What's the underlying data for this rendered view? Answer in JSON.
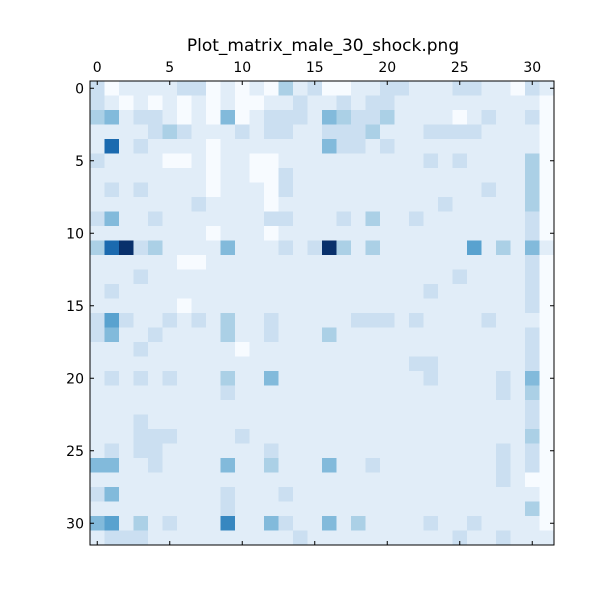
{
  "chart_data": {
    "type": "heatmap",
    "title": "Plot_matrix_male_30_shock.png",
    "xlabel": "",
    "ylabel": "",
    "rows": 32,
    "cols": 32,
    "x_ticks": [
      0,
      5,
      10,
      15,
      20,
      25,
      30
    ],
    "y_ticks": [
      0,
      5,
      10,
      15,
      20,
      25,
      30
    ],
    "x_tick_labels": [
      "0",
      "5",
      "10",
      "15",
      "20",
      "25",
      "30"
    ],
    "y_tick_labels": [
      "0",
      "5",
      "10",
      "15",
      "20",
      "25",
      "30"
    ],
    "x_axis_position": "top",
    "y_axis_direction": "top-to-bottom",
    "colormap": "Blues",
    "color_low": "#f7fbff",
    "color_high": "#08306b",
    "value_range": [
      0,
      1
    ],
    "grid": false,
    "legend": "none",
    "cells": [
      [
        2,
        0,
        1,
        1,
        1,
        1,
        2,
        2,
        0,
        1,
        0,
        1,
        0,
        3,
        1,
        2,
        0,
        0,
        1,
        1,
        2,
        2,
        1,
        1,
        1,
        2,
        2,
        1,
        1,
        0,
        2,
        1
      ],
      [
        2,
        1,
        0,
        1,
        0,
        1,
        0,
        1,
        0,
        1,
        0,
        0,
        1,
        1,
        2,
        1,
        1,
        2,
        1,
        2,
        2,
        1,
        1,
        1,
        1,
        1,
        1,
        1,
        1,
        1,
        1,
        0
      ],
      [
        3,
        4,
        1,
        2,
        2,
        1,
        0,
        1,
        0,
        4,
        0,
        1,
        2,
        2,
        2,
        1,
        4,
        3,
        2,
        2,
        3,
        1,
        1,
        1,
        1,
        0,
        1,
        2,
        1,
        1,
        2,
        0
      ],
      [
        1,
        1,
        1,
        1,
        2,
        3,
        2,
        1,
        1,
        1,
        2,
        1,
        2,
        2,
        1,
        1,
        2,
        2,
        2,
        3,
        1,
        1,
        1,
        2,
        2,
        2,
        2,
        1,
        1,
        1,
        1,
        0
      ],
      [
        1,
        7,
        1,
        2,
        1,
        1,
        1,
        1,
        0,
        1,
        1,
        1,
        1,
        1,
        1,
        1,
        4,
        2,
        2,
        1,
        2,
        1,
        1,
        1,
        1,
        1,
        1,
        1,
        1,
        1,
        1,
        0
      ],
      [
        2,
        1,
        1,
        1,
        1,
        0,
        0,
        1,
        0,
        1,
        1,
        0,
        0,
        1,
        1,
        1,
        1,
        1,
        1,
        1,
        1,
        1,
        1,
        2,
        1,
        2,
        1,
        1,
        1,
        1,
        3,
        0
      ],
      [
        1,
        1,
        1,
        1,
        1,
        1,
        1,
        1,
        0,
        1,
        1,
        0,
        0,
        2,
        1,
        1,
        1,
        1,
        1,
        1,
        1,
        1,
        1,
        1,
        1,
        1,
        1,
        1,
        1,
        1,
        3,
        0
      ],
      [
        1,
        2,
        1,
        2,
        1,
        1,
        1,
        1,
        0,
        1,
        1,
        1,
        0,
        2,
        1,
        1,
        1,
        1,
        1,
        1,
        1,
        1,
        1,
        1,
        1,
        1,
        1,
        2,
        1,
        1,
        3,
        0
      ],
      [
        1,
        1,
        1,
        1,
        1,
        1,
        1,
        2,
        1,
        1,
        1,
        1,
        0,
        1,
        1,
        1,
        1,
        1,
        1,
        1,
        1,
        1,
        1,
        1,
        2,
        1,
        1,
        1,
        1,
        1,
        3,
        0
      ],
      [
        2,
        4,
        1,
        1,
        2,
        1,
        1,
        1,
        1,
        1,
        1,
        1,
        2,
        2,
        1,
        1,
        1,
        2,
        1,
        3,
        1,
        1,
        2,
        1,
        1,
        1,
        1,
        1,
        1,
        1,
        2,
        0
      ],
      [
        1,
        1,
        1,
        1,
        1,
        1,
        1,
        1,
        0,
        1,
        1,
        1,
        0,
        1,
        1,
        1,
        1,
        1,
        1,
        1,
        1,
        1,
        1,
        1,
        1,
        1,
        1,
        1,
        1,
        1,
        2,
        0
      ],
      [
        3,
        7,
        9,
        2,
        3,
        1,
        1,
        1,
        1,
        4,
        1,
        1,
        1,
        2,
        1,
        2,
        9,
        3,
        1,
        3,
        1,
        1,
        1,
        1,
        1,
        1,
        5,
        1,
        3,
        1,
        4,
        1
      ],
      [
        1,
        1,
        1,
        1,
        1,
        1,
        0,
        0,
        1,
        1,
        1,
        1,
        1,
        1,
        1,
        1,
        1,
        1,
        1,
        1,
        1,
        1,
        1,
        1,
        1,
        1,
        1,
        1,
        1,
        1,
        2,
        0
      ],
      [
        1,
        1,
        1,
        2,
        1,
        1,
        1,
        1,
        1,
        1,
        1,
        1,
        1,
        1,
        1,
        1,
        1,
        1,
        1,
        1,
        1,
        1,
        1,
        1,
        1,
        2,
        1,
        1,
        1,
        1,
        2,
        0
      ],
      [
        1,
        2,
        1,
        1,
        1,
        1,
        1,
        1,
        1,
        1,
        1,
        1,
        1,
        1,
        1,
        1,
        1,
        1,
        1,
        1,
        1,
        1,
        1,
        2,
        1,
        1,
        1,
        1,
        1,
        1,
        2,
        0
      ],
      [
        1,
        1,
        1,
        1,
        1,
        1,
        0,
        1,
        1,
        1,
        1,
        1,
        1,
        1,
        1,
        1,
        1,
        1,
        1,
        1,
        1,
        1,
        1,
        1,
        1,
        1,
        1,
        1,
        1,
        1,
        2,
        0
      ],
      [
        2,
        5,
        2,
        1,
        1,
        2,
        1,
        2,
        1,
        3,
        1,
        1,
        2,
        1,
        1,
        1,
        1,
        1,
        2,
        2,
        2,
        1,
        2,
        1,
        1,
        1,
        1,
        2,
        1,
        1,
        1,
        0
      ],
      [
        2,
        4,
        1,
        1,
        2,
        1,
        1,
        1,
        1,
        3,
        1,
        1,
        2,
        1,
        1,
        1,
        3,
        1,
        1,
        1,
        1,
        1,
        1,
        1,
        1,
        1,
        1,
        1,
        1,
        1,
        2,
        0
      ],
      [
        1,
        1,
        1,
        2,
        1,
        1,
        1,
        1,
        1,
        1,
        0,
        1,
        1,
        1,
        1,
        1,
        1,
        1,
        1,
        1,
        1,
        1,
        1,
        1,
        1,
        1,
        1,
        1,
        1,
        1,
        2,
        0
      ],
      [
        1,
        1,
        1,
        1,
        1,
        1,
        1,
        1,
        1,
        1,
        1,
        1,
        1,
        1,
        1,
        1,
        1,
        1,
        1,
        1,
        1,
        1,
        2,
        2,
        1,
        1,
        1,
        1,
        1,
        1,
        2,
        0
      ],
      [
        1,
        2,
        1,
        2,
        1,
        2,
        1,
        1,
        1,
        3,
        1,
        1,
        4,
        1,
        1,
        1,
        1,
        1,
        1,
        1,
        1,
        1,
        1,
        2,
        1,
        1,
        1,
        1,
        2,
        1,
        4,
        0
      ],
      [
        1,
        1,
        1,
        1,
        1,
        1,
        1,
        1,
        1,
        2,
        1,
        1,
        1,
        1,
        1,
        1,
        1,
        1,
        1,
        1,
        1,
        1,
        1,
        1,
        1,
        1,
        1,
        1,
        2,
        1,
        3,
        0
      ],
      [
        1,
        1,
        1,
        1,
        1,
        1,
        1,
        1,
        1,
        1,
        1,
        1,
        1,
        1,
        1,
        1,
        1,
        1,
        1,
        1,
        1,
        1,
        1,
        1,
        1,
        1,
        1,
        1,
        1,
        1,
        2,
        0
      ],
      [
        1,
        1,
        1,
        2,
        1,
        1,
        1,
        1,
        1,
        1,
        1,
        1,
        1,
        1,
        1,
        1,
        1,
        1,
        1,
        1,
        1,
        1,
        1,
        1,
        1,
        1,
        1,
        1,
        1,
        1,
        2,
        0
      ],
      [
        1,
        1,
        1,
        2,
        2,
        2,
        1,
        1,
        1,
        1,
        2,
        1,
        1,
        1,
        1,
        1,
        1,
        1,
        1,
        1,
        1,
        1,
        1,
        1,
        1,
        1,
        1,
        1,
        1,
        1,
        3,
        0
      ],
      [
        1,
        2,
        1,
        2,
        2,
        1,
        1,
        1,
        1,
        1,
        1,
        1,
        2,
        1,
        1,
        1,
        1,
        1,
        1,
        1,
        1,
        1,
        1,
        1,
        1,
        1,
        1,
        1,
        2,
        1,
        2,
        0
      ],
      [
        4,
        4,
        1,
        1,
        2,
        1,
        1,
        1,
        1,
        4,
        1,
        1,
        3,
        1,
        1,
        1,
        4,
        1,
        1,
        2,
        1,
        1,
        1,
        1,
        1,
        1,
        1,
        1,
        2,
        1,
        2,
        0
      ],
      [
        1,
        1,
        1,
        1,
        1,
        1,
        1,
        1,
        1,
        1,
        1,
        1,
        1,
        1,
        1,
        1,
        1,
        1,
        1,
        1,
        1,
        1,
        1,
        1,
        1,
        1,
        1,
        1,
        2,
        1,
        0,
        0
      ],
      [
        2,
        4,
        1,
        1,
        1,
        1,
        1,
        1,
        1,
        2,
        1,
        1,
        1,
        2,
        1,
        1,
        1,
        1,
        1,
        1,
        1,
        1,
        1,
        1,
        1,
        1,
        1,
        1,
        1,
        1,
        1,
        0
      ],
      [
        1,
        1,
        1,
        1,
        1,
        1,
        1,
        1,
        1,
        2,
        1,
        1,
        1,
        1,
        1,
        1,
        1,
        1,
        1,
        1,
        1,
        1,
        1,
        1,
        1,
        1,
        1,
        1,
        1,
        1,
        3,
        0
      ],
      [
        4,
        5,
        1,
        3,
        1,
        2,
        1,
        1,
        1,
        6,
        1,
        1,
        4,
        2,
        1,
        1,
        4,
        1,
        3,
        1,
        1,
        1,
        1,
        2,
        1,
        1,
        2,
        1,
        1,
        1,
        1,
        0
      ],
      [
        1,
        2,
        2,
        2,
        1,
        1,
        1,
        1,
        1,
        1,
        1,
        1,
        1,
        1,
        2,
        1,
        1,
        1,
        1,
        1,
        1,
        1,
        1,
        1,
        1,
        2,
        1,
        1,
        2,
        1,
        1,
        1
      ]
    ],
    "cell_scale_max": 9
  }
}
